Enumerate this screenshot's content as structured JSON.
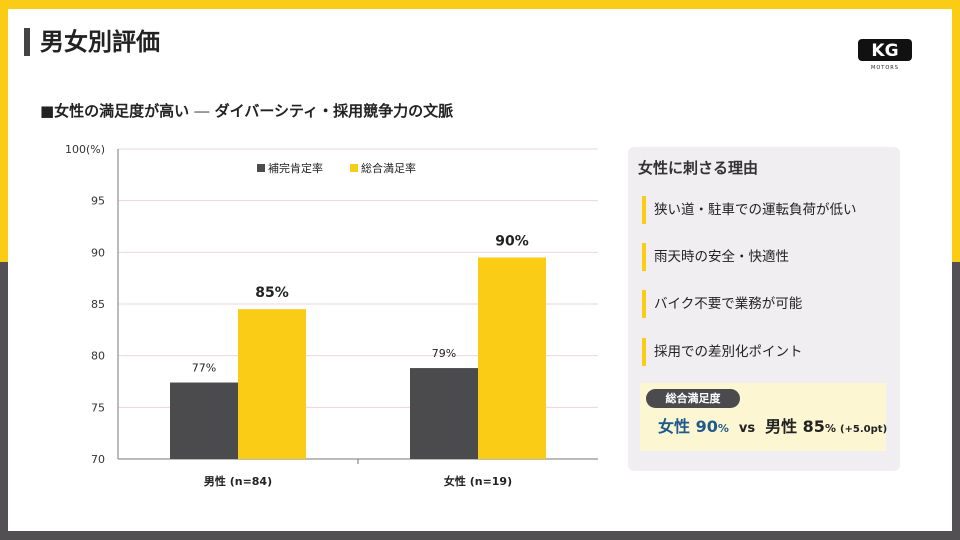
{
  "page_title": "男女別評価",
  "logo": {
    "text": "KG",
    "subtext": "MOTORS"
  },
  "subtitle": {
    "main": "■女性の満足度が高い",
    "dash": " ― ",
    "rest": "ダイバーシティ・採用競争力の文脈"
  },
  "chart_data": {
    "type": "bar",
    "categories": [
      "男性 (n=84)",
      "女性 (n=19)"
    ],
    "series": [
      {
        "name": "補完肯定率",
        "values": [
          77.4,
          78.8
        ],
        "labels": [
          "77%",
          "79%"
        ],
        "color": "#4B4A4D"
      },
      {
        "name": "総合満足率",
        "values": [
          84.5,
          89.5
        ],
        "labels": [
          "85%",
          "90%"
        ],
        "color": "#FACC15"
      }
    ],
    "ylim": [
      70,
      100
    ],
    "yticks": [
      "70",
      "75",
      "80",
      "85",
      "90",
      "95",
      "100(%)"
    ],
    "legend_position": "top-center",
    "grid": true
  },
  "panel": {
    "title": "女性に刺さる理由",
    "reasons": [
      "狭い道・駐車での運転負荷が低い",
      "雨天時の安全・快適性",
      "バイク不要で業務が可能",
      "採用での差別化ポイント"
    ],
    "satisfaction": {
      "badge": "総合満足度",
      "female_label": "女性 90",
      "female_unit": "%",
      "vs": "vs",
      "male_label": "男性 85",
      "male_unit": "%",
      "diff": "(+5.0pt)"
    }
  },
  "colors": {
    "accent": "#FACC15",
    "dark": "#4B4A4D",
    "highlight_blue": "#1E5A8C"
  }
}
